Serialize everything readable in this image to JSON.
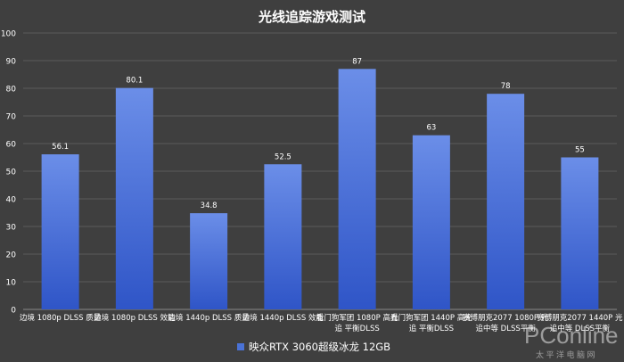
{
  "chart_data": {
    "type": "bar",
    "title": "光线追踪游戏测试",
    "categories": [
      [
        "边境 1080p DLSS 质量"
      ],
      [
        "边境 1080p DLSS 效能"
      ],
      [
        "边境 1440p DLSS 质量"
      ],
      [
        "边境 1440p DLSS 效能"
      ],
      [
        "看门狗军团 1080P 高光",
        "追 平衡DLSS"
      ],
      [
        "看门狗军团 1440P 高光",
        "追 平衡DLSS"
      ],
      [
        "赛博朋克2077 1080P 光",
        "追中等 DLSS平衡"
      ],
      [
        "赛博朋克2077 1440P 光",
        "追中等 DLSS平衡"
      ]
    ],
    "series": [
      {
        "name": "映众RTX 3060超级冰龙 12GB",
        "color": "#4a72d6",
        "values": [
          56.1,
          80.1,
          34.8,
          52.5,
          87,
          63,
          78,
          55
        ],
        "labels": [
          "56.1",
          "80.1",
          "34.8",
          "52.5",
          "87",
          "63",
          "78",
          "55"
        ]
      }
    ],
    "yticks": [
      "0",
      "10",
      "20",
      "30",
      "40",
      "50",
      "60",
      "70",
      "80",
      "90",
      "100"
    ],
    "ylim": [
      0,
      100
    ],
    "grid": true,
    "legend": "bottom",
    "xlabel": "",
    "ylabel": ""
  },
  "watermark": {
    "logo": "PConline",
    "sub": "太 平 洋 电 脑 网"
  }
}
